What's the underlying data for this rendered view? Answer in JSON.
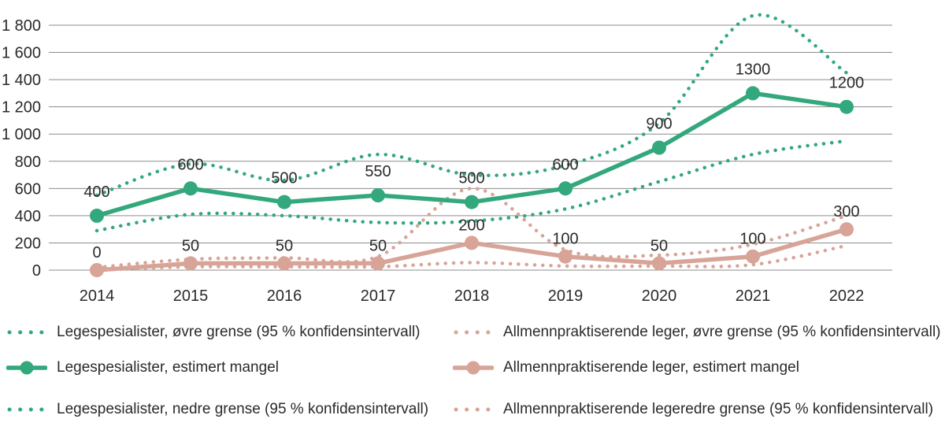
{
  "chart_data": {
    "type": "line",
    "x": [
      "2014",
      "2015",
      "2016",
      "2017",
      "2018",
      "2019",
      "2020",
      "2021",
      "2022"
    ],
    "ylim": [
      0,
      1800
    ],
    "ytick_step": 200,
    "y_tick_labels": [
      "1 800",
      "1 600",
      "1 400",
      "1 200",
      "1 000",
      "800",
      "600",
      "400",
      "200",
      "0"
    ],
    "grid": true,
    "legend_position": "bottom",
    "series": [
      {
        "name": "Legespesialister, øvre grense (95 % konfidensintervall)",
        "color": "green",
        "line_style": "dotted",
        "markers": false,
        "data_labels": false,
        "values": [
          550,
          780,
          660,
          850,
          700,
          770,
          1080,
          1870,
          1450
        ]
      },
      {
        "name": "Legespesialister, estimert mangel",
        "color": "green",
        "line_style": "solid",
        "markers": true,
        "data_labels": true,
        "values": [
          400,
          600,
          500,
          550,
          500,
          600,
          900,
          1300,
          1200
        ]
      },
      {
        "name": "Legespesialister, nedre grense (95 % konfidensintervall)",
        "color": "green",
        "line_style": "dotted",
        "markers": false,
        "data_labels": false,
        "values": [
          290,
          410,
          400,
          350,
          360,
          450,
          650,
          850,
          950
        ]
      },
      {
        "name": "Allmennpraktiserende leger, øvre grense (95 % konfidensintervall)",
        "color": "pink",
        "line_style": "dotted",
        "markers": false,
        "data_labels": false,
        "values": [
          20,
          80,
          90,
          100,
          600,
          150,
          110,
          190,
          400
        ]
      },
      {
        "name": "Allmennpraktiserende leger, estimert mangel",
        "color": "pink",
        "line_style": "solid",
        "markers": true,
        "data_labels": true,
        "values": [
          0,
          50,
          50,
          50,
          200,
          100,
          50,
          100,
          300
        ]
      },
      {
        "name": "Allmennpraktiserende legeredre grense (95 % konfidensintervall)",
        "color": "pink",
        "line_style": "dotted",
        "markers": false,
        "data_labels": false,
        "values": [
          0,
          25,
          25,
          25,
          55,
          30,
          30,
          40,
          180
        ]
      }
    ]
  },
  "colors": {
    "green": "#34a87d",
    "pink": "#d8a498",
    "grid": "#8c8c8c",
    "text": "#2a2a2a"
  }
}
